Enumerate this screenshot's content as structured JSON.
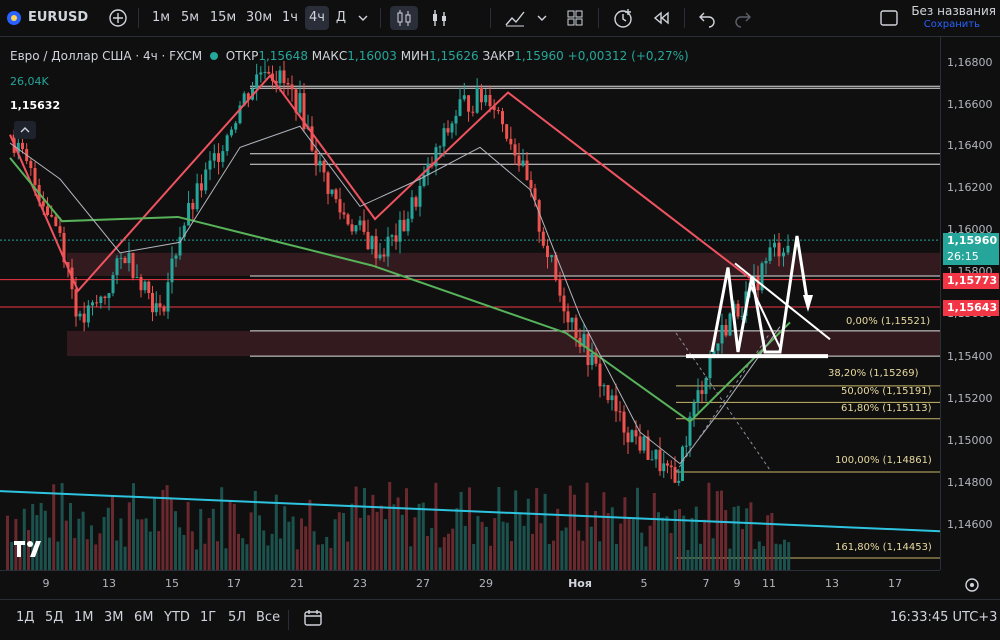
{
  "toolbar": {
    "symbol": "EURUSD",
    "intervals": [
      "1м",
      "5м",
      "15м",
      "30м",
      "1ч",
      "4ч",
      "Д"
    ],
    "active_interval": "4ч",
    "layout_name": "Без названия",
    "saved": "Сохранить"
  },
  "legend": {
    "title": "Евро / Доллар США · 4ч · FXCM",
    "open_label": "ОТКР",
    "open": "1,15648",
    "high_label": "МАКС",
    "high": "1,16003",
    "low_label": "МИН",
    "low": "1,15626",
    "close_label": "ЗАКР",
    "close": "1,15960",
    "change": "+0,00312 (+0,27%)",
    "volume": "26,04K",
    "crosshair_price": "1,15632"
  },
  "price_axis": {
    "ticks": [
      "1,16800",
      "1,16600",
      "1,16400",
      "1,16200",
      "1,16000",
      "1,15800",
      "1,15600",
      "1,15400",
      "1,15200",
      "1,15000",
      "1,14800",
      "1,14600"
    ],
    "current_price": "1,15960",
    "countdown": "26:15",
    "line1": "1,15773",
    "line2": "1,15643",
    "current_color": "#26a69a",
    "line_color": "#f23645"
  },
  "fib_levels": [
    {
      "label": "0,00% (1,15521)"
    },
    {
      "label": "38,20% (1,15269)"
    },
    {
      "label": "50,00% (1,15191)"
    },
    {
      "label": "61,80% (1,15113)"
    },
    {
      "label": "100,00% (1,14861)"
    },
    {
      "label": "161,80% (1,14453)"
    }
  ],
  "time_axis": [
    "9",
    "13",
    "15",
    "17",
    "21",
    "23",
    "27",
    "29",
    "Ноя",
    "5",
    "7",
    "9",
    "11",
    "13",
    "17"
  ],
  "bottom": {
    "ranges": [
      "1Д",
      "5Д",
      "1М",
      "3М",
      "6М",
      "YTD",
      "1Г",
      "5Л",
      "Все"
    ],
    "clock": "16:33:45 UTC+3"
  }
}
